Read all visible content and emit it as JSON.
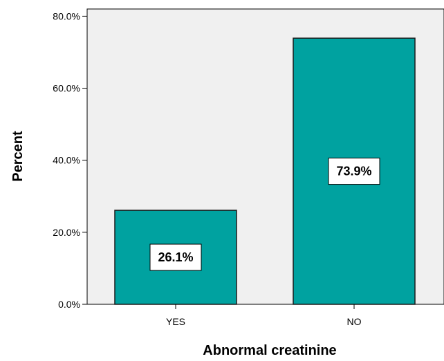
{
  "chart_data": {
    "type": "bar",
    "categories": [
      "YES",
      "NO"
    ],
    "values": [
      26.1,
      73.9
    ],
    "data_labels": [
      "26.1%",
      "73.9%"
    ],
    "xlabel": "Abnormal creatinine",
    "ylabel": "Percent",
    "ylim": [
      0,
      80
    ],
    "yticks": [
      0,
      20,
      40,
      60,
      80
    ],
    "ytick_labels": [
      "0.0%",
      "20.0%",
      "40.0%",
      "60.0%",
      "80.0%"
    ],
    "grid": false,
    "legend": "none",
    "colors": {
      "bar_fill": "#00A2A0",
      "bar_stroke": "#1a1a1a",
      "plot_background": "#F0F0F0",
      "label_box": "#FFFFFF"
    }
  }
}
